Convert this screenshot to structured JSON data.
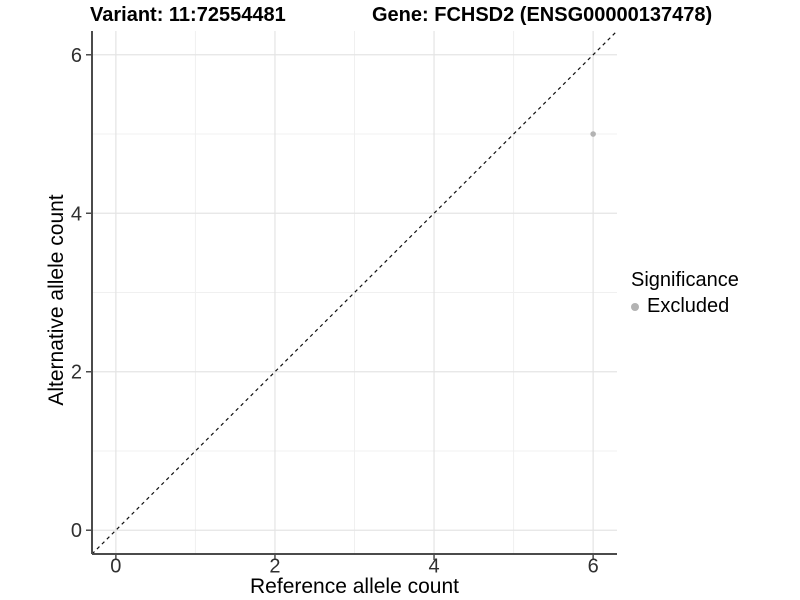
{
  "title": {
    "variant": "Variant: 11:72554481",
    "gene": "Gene: FCHSD2 (ENSG00000137478)"
  },
  "legend": {
    "title": "Significance",
    "items": [
      {
        "label": "Excluded",
        "color": "#b3b3b3"
      }
    ]
  },
  "chart_data": {
    "type": "scatter",
    "title": "Variant: 11:72554481   Gene: FCHSD2 (ENSG00000137478)",
    "xlabel": "Reference allele count",
    "ylabel": "Alternative allele count",
    "xlim": [
      -0.3,
      6.3
    ],
    "ylim": [
      -0.3,
      6.3
    ],
    "x_ticks": [
      0,
      2,
      4,
      6
    ],
    "y_ticks": [
      0,
      2,
      4,
      6
    ],
    "x_minor_ticks": [
      1,
      3,
      5
    ],
    "y_minor_ticks": [
      1,
      3,
      5
    ],
    "grid": true,
    "legend_position": "right",
    "reference_line": {
      "type": "identity",
      "equation": "y = x",
      "style": "dashed",
      "color": "#111111"
    },
    "series": [
      {
        "name": "Excluded",
        "color": "#b3b3b3",
        "points": [
          {
            "x": 6,
            "y": 5
          }
        ]
      }
    ]
  },
  "colors": {
    "background": "#ffffff",
    "axis_line": "#4b4b4b",
    "tick_text": "#303030",
    "grid_major": "#e4e4e4",
    "grid_minor": "#f0f0f0",
    "point": "#b3b3b3"
  }
}
